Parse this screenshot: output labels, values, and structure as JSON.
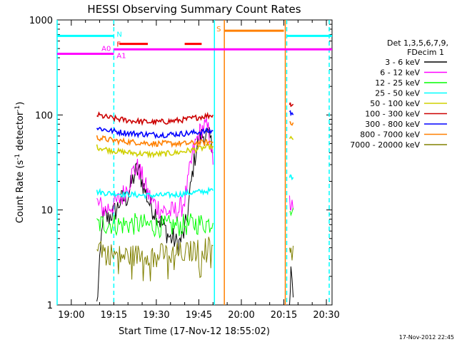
{
  "chart_data": {
    "type": "line",
    "title": "HESSI Observing Summary Count Rates",
    "xlabel": "Start Time (17-Nov-12 18:55:02)",
    "ylabel": "Count Rate (s",
    "ylabel_sup1": "-1",
    "ylabel_mid": " detector",
    "ylabel_sup2": "-1",
    "ylabel_end": ")",
    "y_scale": "log",
    "ylim": [
      1,
      1000
    ],
    "x_range_min": [
      0,
      97
    ],
    "x_ticks": [
      {
        "m": 5,
        "label": "19:00"
      },
      {
        "m": 20,
        "label": "19:15"
      },
      {
        "m": 35,
        "label": "19:30"
      },
      {
        "m": 50,
        "label": "19:45"
      },
      {
        "m": 65,
        "label": "20:00"
      },
      {
        "m": 80,
        "label": "20:15"
      },
      {
        "m": 95,
        "label": "20:30"
      }
    ],
    "y_ticks": [
      {
        "v": 1,
        "label": "1"
      },
      {
        "v": 10,
        "label": "10"
      },
      {
        "v": 100,
        "label": "100"
      },
      {
        "v": 1000,
        "label": "1000"
      }
    ],
    "legend_title_1": "Det 1,3,5,6,7,9,",
    "legend_title_2": "FDecim 1",
    "legend_placement": "right",
    "series": [
      {
        "name": "3 - 6 keV",
        "color": "#000000",
        "segments": [
          [
            [
              14.0,
              1.0
            ],
            [
              15.0,
              2.5
            ],
            [
              16.0,
              8
            ],
            [
              17.0,
              8.5
            ],
            [
              18,
              8
            ],
            [
              19,
              9
            ],
            [
              20,
              9.5
            ],
            [
              21,
              10
            ],
            [
              22,
              12
            ],
            [
              23,
              13
            ],
            [
              24,
              13
            ],
            [
              25,
              14
            ],
            [
              26,
              18
            ],
            [
              27,
              22
            ],
            [
              28,
              26
            ],
            [
              29,
              25
            ],
            [
              30,
              20
            ],
            [
              31,
              16
            ],
            [
              32,
              13
            ],
            [
              33,
              11
            ],
            [
              34,
              10
            ],
            [
              35,
              9
            ],
            [
              36,
              8
            ],
            [
              37,
              7
            ],
            [
              38,
              6.5
            ],
            [
              39,
              5.5
            ],
            [
              40,
              5
            ],
            [
              41,
              5
            ],
            [
              42,
              4.5
            ],
            [
              43,
              4.5
            ],
            [
              44,
              5
            ],
            [
              45,
              6
            ],
            [
              46,
              9
            ],
            [
              47,
              16
            ],
            [
              48,
              28
            ],
            [
              49,
              42
            ],
            [
              50,
              55
            ],
            [
              51,
              60
            ],
            [
              52,
              62
            ],
            [
              53,
              60
            ],
            [
              54,
              55
            ],
            [
              55,
              40
            ]
          ],
          [
            [
              82.0,
              1.0
            ],
            [
              82.5,
              2.5
            ],
            [
              83.3,
              1.2
            ]
          ]
        ]
      },
      {
        "name": "6 - 12 keV",
        "color": "#ff00ff",
        "segments": [
          [
            [
              14.0,
              12
            ],
            [
              15,
              11
            ],
            [
              16,
              10.5
            ],
            [
              17,
              10
            ],
            [
              18,
              10.5
            ],
            [
              19,
              11
            ],
            [
              20,
              11.5
            ],
            [
              21,
              12
            ],
            [
              22,
              13
            ],
            [
              23,
              14
            ],
            [
              24,
              16
            ],
            [
              25,
              18
            ],
            [
              26,
              22
            ],
            [
              27,
              26
            ],
            [
              28,
              28
            ],
            [
              29,
              26
            ],
            [
              30,
              22
            ],
            [
              31,
              18
            ],
            [
              32,
              15
            ],
            [
              33,
              13
            ],
            [
              34,
              12
            ],
            [
              35,
              11
            ],
            [
              36,
              10.5
            ],
            [
              37,
              10
            ],
            [
              38,
              9.8
            ],
            [
              39,
              9.5
            ],
            [
              40,
              9.5
            ],
            [
              41,
              9.6
            ],
            [
              42,
              9.8
            ],
            [
              43,
              10
            ],
            [
              44,
              11
            ],
            [
              45,
              13
            ],
            [
              46,
              18
            ],
            [
              47,
              28
            ],
            [
              48,
              40
            ],
            [
              49,
              52
            ],
            [
              50,
              62
            ],
            [
              51,
              70
            ],
            [
              52,
              75
            ],
            [
              53,
              72
            ],
            [
              54,
              60
            ],
            [
              55,
              30
            ]
          ],
          [
            [
              82.0,
              12
            ],
            [
              82.5,
              11
            ],
            [
              83.3,
              10
            ]
          ]
        ]
      },
      {
        "name": "12 - 25 keV",
        "color": "#00ff00",
        "segments": [
          [
            [
              14.0,
              7
            ],
            [
              18,
              7.2
            ],
            [
              22,
              7.0
            ],
            [
              26,
              7.1
            ],
            [
              30,
              7.0
            ],
            [
              34,
              6.8
            ],
            [
              38,
              6.7
            ],
            [
              42,
              6.8
            ],
            [
              46,
              7.0
            ],
            [
              50,
              7.2
            ],
            [
              55,
              7.3
            ]
          ],
          [
            [
              82.0,
              12
            ],
            [
              82.5,
              11
            ],
            [
              83.3,
              10.5
            ]
          ]
        ]
      },
      {
        "name": "25 - 50 keV",
        "color": "#00ffff",
        "segments": [
          [
            [
              14.0,
              15.5
            ],
            [
              18,
              15.0
            ],
            [
              22,
              14.8
            ],
            [
              26,
              14.5
            ],
            [
              30,
              14.3
            ],
            [
              34,
              14.2
            ],
            [
              38,
              14.3
            ],
            [
              42,
              14.5
            ],
            [
              46,
              15.0
            ],
            [
              50,
              15.5
            ],
            [
              55,
              16
            ]
          ],
          [
            [
              82.0,
              22
            ],
            [
              82.5,
              23
            ],
            [
              83.3,
              22
            ]
          ]
        ]
      },
      {
        "name": "50 - 100 keV",
        "color": "#d0d000",
        "segments": [
          [
            [
              14.0,
              46
            ],
            [
              18,
              43
            ],
            [
              22,
              41
            ],
            [
              26,
              40
            ],
            [
              30,
              39
            ],
            [
              34,
              38.5
            ],
            [
              38,
              39
            ],
            [
              42,
              40
            ],
            [
              46,
              42
            ],
            [
              50,
              44
            ],
            [
              55,
              47
            ]
          ],
          [
            [
              82.0,
              55
            ],
            [
              82.5,
              56
            ],
            [
              83.3,
              55
            ]
          ]
        ]
      },
      {
        "name": "100 - 300 keV",
        "color": "#cc0000",
        "segments": [
          [
            [
              14.0,
              100
            ],
            [
              18,
              94
            ],
            [
              22,
              90
            ],
            [
              26,
              87
            ],
            [
              30,
              85
            ],
            [
              34,
              84
            ],
            [
              38,
              85
            ],
            [
              42,
              87
            ],
            [
              46,
              90
            ],
            [
              50,
              95
            ],
            [
              55,
              100
            ]
          ],
          [
            [
              82.0,
              130
            ],
            [
              82.5,
              132
            ],
            [
              83.3,
              130
            ]
          ]
        ]
      },
      {
        "name": "300 - 800 keV",
        "color": "#0000ff",
        "segments": [
          [
            [
              14.0,
              73
            ],
            [
              18,
              69
            ],
            [
              22,
              66
            ],
            [
              26,
              64
            ],
            [
              30,
              63
            ],
            [
              34,
              62
            ],
            [
              38,
              62
            ],
            [
              42,
              63
            ],
            [
              46,
              64
            ],
            [
              50,
              66
            ],
            [
              55,
              68
            ]
          ],
          [
            [
              82.0,
              110
            ],
            [
              82.5,
              105
            ],
            [
              83.3,
              100
            ]
          ]
        ]
      },
      {
        "name": "800 - 7000 keV",
        "color": "#ff8000",
        "segments": [
          [
            [
              14.0,
              58
            ],
            [
              18,
              55
            ],
            [
              22,
              53
            ],
            [
              26,
              52
            ],
            [
              30,
              51
            ],
            [
              34,
              50
            ],
            [
              38,
              50
            ],
            [
              42,
              50
            ],
            [
              46,
              50
            ],
            [
              50,
              51
            ],
            [
              55,
              52
            ]
          ],
          [
            [
              82.0,
              85
            ],
            [
              82.5,
              84
            ],
            [
              83.3,
              83
            ]
          ]
        ]
      },
      {
        "name": "7000 - 20000 keV",
        "color": "#808000",
        "segments": [
          [
            [
              14.0,
              4.5
            ],
            [
              18,
              3.5
            ],
            [
              22,
              3.3
            ],
            [
              26,
              3.3
            ],
            [
              30,
              3.4
            ],
            [
              34,
              3.5
            ],
            [
              38,
              3.4
            ],
            [
              42,
              3.5
            ],
            [
              46,
              3.6
            ],
            [
              50,
              3.8
            ],
            [
              55,
              4.2
            ]
          ],
          [
            [
              82.0,
              4.5
            ],
            [
              82.5,
              4.0
            ],
            [
              83.3,
              4.2
            ]
          ]
        ]
      }
    ],
    "flag_bars": [
      {
        "label": "N",
        "color": "#00ffff",
        "y": 680,
        "segments": [
          [
            0,
            20
          ],
          [
            81,
            97
          ]
        ]
      },
      {
        "label": "F",
        "color": "#ff0000",
        "y": 560,
        "segments": [
          [
            22,
            32
          ],
          [
            45,
            51
          ]
        ]
      },
      {
        "label": "S",
        "color": "#ff8000",
        "y": 770,
        "segments": [
          [
            59,
            80
          ]
        ]
      },
      {
        "label": "A0",
        "color": "#ff00ff",
        "y": 440,
        "segments": [
          [
            0,
            20
          ]
        ]
      },
      {
        "label": "A1",
        "color": "#ff00ff",
        "y": 490,
        "segments": [
          [
            20,
            97
          ]
        ]
      }
    ],
    "vertical_lines": [
      {
        "m": 0,
        "color": "#00ffff",
        "style": "solid"
      },
      {
        "m": 20,
        "color": "#00ffff",
        "style": "dashed"
      },
      {
        "m": 55.5,
        "color": "#00ffff",
        "style": "solid"
      },
      {
        "m": 59,
        "color": "#ff8000",
        "style": "solid"
      },
      {
        "m": 80.5,
        "color": "#ff8000",
        "style": "solid"
      },
      {
        "m": 81,
        "color": "#00ffff",
        "style": "dashed"
      },
      {
        "m": 96,
        "color": "#00ffff",
        "style": "dashed"
      }
    ]
  },
  "footer_timestamp": "17-Nov-2012 22:45"
}
